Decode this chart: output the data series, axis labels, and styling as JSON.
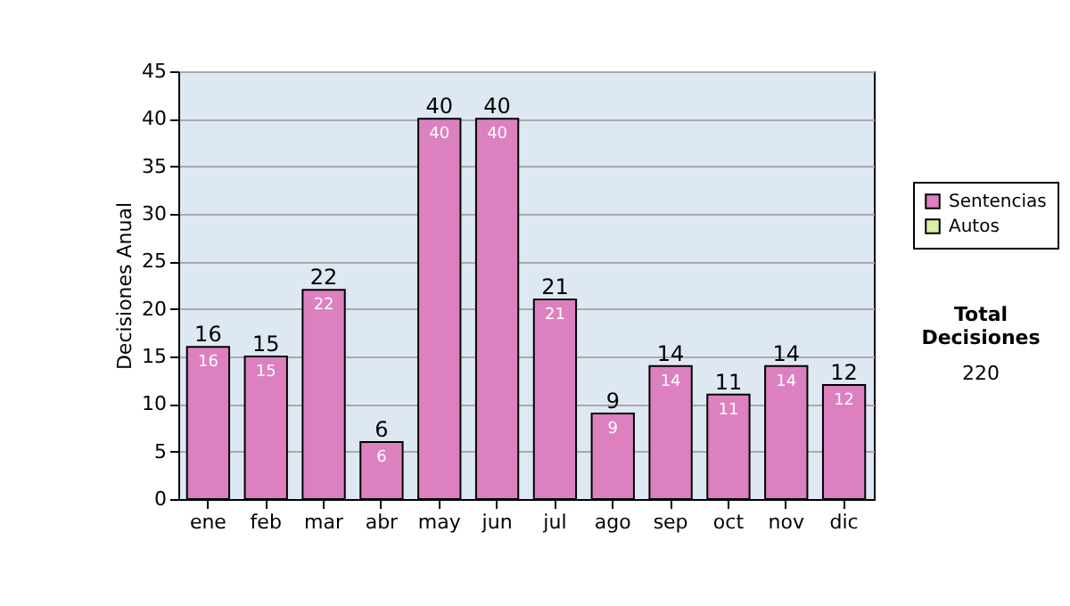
{
  "chart_data": {
    "type": "bar",
    "ylabel": "Decisiones Anual",
    "categories": [
      "ene",
      "feb",
      "mar",
      "abr",
      "may",
      "jun",
      "jul",
      "ago",
      "sep",
      "oct",
      "nov",
      "dic"
    ],
    "series": [
      {
        "name": "Sentencias",
        "color": "#dd80c0",
        "values": [
          16,
          15,
          22,
          6,
          40,
          40,
          21,
          9,
          14,
          11,
          14,
          12
        ],
        "value_labels": [
          "16",
          "15",
          "22",
          "6",
          "40",
          "40",
          "21",
          "9",
          "14",
          "11",
          "14",
          "12"
        ]
      },
      {
        "name": "Autos",
        "color": "#d8f0a0",
        "values": [
          null,
          null,
          null,
          null,
          null,
          null,
          null,
          null,
          null,
          null,
          null,
          null
        ]
      }
    ],
    "stacked": true,
    "totals": [
      "16",
      "15",
      "22",
      "6",
      "40",
      "40",
      "21",
      "9",
      "14",
      "11",
      "14",
      "12"
    ],
    "ylim": [
      0,
      45
    ],
    "yticks": [
      0,
      5,
      10,
      15,
      20,
      25,
      30,
      35,
      40,
      45
    ],
    "grid": "y",
    "legend": "right",
    "annotations": [
      "Total Decisiones",
      "220"
    ]
  }
}
